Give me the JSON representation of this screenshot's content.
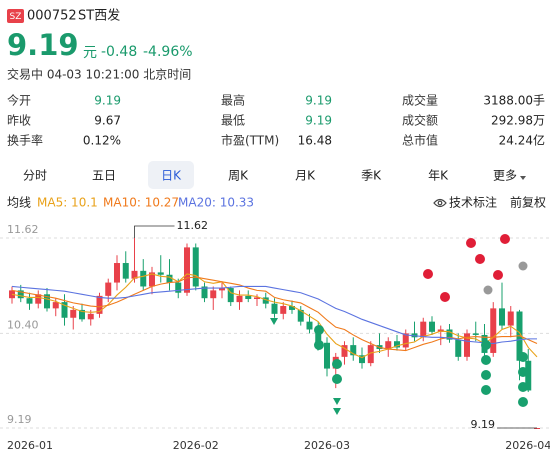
{
  "header": {
    "exchange": "SZ",
    "code": "000752",
    "name": "ST西发",
    "price": "9.19",
    "unit": "元",
    "change": "-0.48",
    "change_pct": "-4.96%",
    "status": "交易中 04-03 10:21:00 北京时间"
  },
  "stats": [
    [
      {
        "label": "今开",
        "value": "9.19",
        "color": "#1a9a6c"
      },
      {
        "label": "最高",
        "value": "9.19",
        "color": "#1a9a6c"
      },
      {
        "label": "成交量",
        "value": "3188.00手"
      }
    ],
    [
      {
        "label": "昨收",
        "value": "9.67"
      },
      {
        "label": "最低",
        "value": "9.19",
        "color": "#1a9a6c"
      },
      {
        "label": "成交额",
        "value": "292.98万"
      }
    ],
    [
      {
        "label": "换手率",
        "value": "0.12%"
      },
      {
        "label": "市盈(TTM)",
        "value": "16.48"
      },
      {
        "label": "总市值",
        "value": "24.24亿"
      }
    ]
  ],
  "tabs": [
    {
      "label": "分时",
      "active": false
    },
    {
      "label": "五日",
      "active": false
    },
    {
      "label": "日K",
      "active": true
    },
    {
      "label": "周K",
      "active": false
    },
    {
      "label": "月K",
      "active": false
    },
    {
      "label": "季K",
      "active": false
    },
    {
      "label": "年K",
      "active": false
    },
    {
      "label": "更多",
      "active": false
    }
  ],
  "indicator": {
    "label": "均线",
    "tools": [
      "技术标注",
      "前复权"
    ]
  },
  "chart_data": {
    "type": "candlestick",
    "up_color": "#e8414a",
    "down_color": "#18a06e",
    "categories": [
      "2026-01",
      null,
      null,
      null,
      null,
      null,
      null,
      null,
      null,
      null,
      null,
      null,
      null,
      null,
      null,
      null,
      null,
      null,
      null,
      null,
      null,
      "2026-02",
      null,
      null,
      null,
      null,
      null,
      null,
      null,
      null,
      null,
      null,
      null,
      null,
      null,
      null,
      "2026-03",
      null,
      null,
      null,
      null,
      null,
      null,
      null,
      null,
      null,
      null,
      null,
      null,
      null,
      null,
      null,
      null,
      null,
      null,
      null,
      null,
      null,
      null,
      "2026-04",
      null
    ],
    "open": [
      10.85,
      10.95,
      10.85,
      10.78,
      10.9,
      10.72,
      10.8,
      10.6,
      10.7,
      10.58,
      10.65,
      10.88,
      11.05,
      11.3,
      11.1,
      11.2,
      11.0,
      11.18,
      11.15,
      11.05,
      10.92,
      11.5,
      11.0,
      10.85,
      10.95,
      10.98,
      10.8,
      10.88,
      10.84,
      10.86,
      10.78,
      10.65,
      10.75,
      10.7,
      10.55,
      10.45,
      10.28,
      9.95,
      10.1,
      10.25,
      10.12,
      10.02,
      10.25,
      10.2,
      10.3,
      10.22,
      10.4,
      10.35,
      10.55,
      10.42,
      10.45,
      10.32,
      10.1,
      10.4,
      10.38,
      10.15,
      10.72,
      10.5,
      10.68,
      10.05,
      9.19
    ],
    "high": [
      11.0,
      11.02,
      10.92,
      10.95,
      10.98,
      10.85,
      10.9,
      10.75,
      10.78,
      10.7,
      10.92,
      11.1,
      11.4,
      11.45,
      11.62,
      11.35,
      11.25,
      11.4,
      11.35,
      11.1,
      11.55,
      11.55,
      11.05,
      11.0,
      11.05,
      11.0,
      10.95,
      10.95,
      10.9,
      10.92,
      10.85,
      10.8,
      10.82,
      10.75,
      10.65,
      10.55,
      10.35,
      10.15,
      10.3,
      10.35,
      10.22,
      10.3,
      10.4,
      10.35,
      10.38,
      10.45,
      10.55,
      10.6,
      10.62,
      10.5,
      10.52,
      10.4,
      10.45,
      10.55,
      10.52,
      10.8,
      11.05,
      10.75,
      10.7,
      10.2,
      9.19
    ],
    "low": [
      10.78,
      10.8,
      10.7,
      10.72,
      10.68,
      10.62,
      10.5,
      10.45,
      10.55,
      10.5,
      10.6,
      10.8,
      10.95,
      11.05,
      11.05,
      10.95,
      10.9,
      11.05,
      10.95,
      10.85,
      10.88,
      10.95,
      10.8,
      10.7,
      10.85,
      10.75,
      10.7,
      10.8,
      10.75,
      10.72,
      10.6,
      10.58,
      10.65,
      10.5,
      10.4,
      10.2,
      9.85,
      9.7,
      10.0,
      10.05,
      9.95,
      9.98,
      10.15,
      10.1,
      10.18,
      10.18,
      10.3,
      10.3,
      10.38,
      10.25,
      10.28,
      10.05,
      10.05,
      10.3,
      10.02,
      10.1,
      10.45,
      10.35,
      9.8,
      9.65,
      9.19
    ],
    "close": [
      10.95,
      10.85,
      10.78,
      10.9,
      10.72,
      10.8,
      10.6,
      10.7,
      10.58,
      10.65,
      10.88,
      11.05,
      11.3,
      11.1,
      11.2,
      11.0,
      11.18,
      11.15,
      11.05,
      10.92,
      11.5,
      11.0,
      10.85,
      10.95,
      10.98,
      10.8,
      10.88,
      10.84,
      10.86,
      10.78,
      10.65,
      10.75,
      10.7,
      10.55,
      10.45,
      10.28,
      9.95,
      10.1,
      10.25,
      10.12,
      10.02,
      10.25,
      10.2,
      10.3,
      10.22,
      10.4,
      10.35,
      10.55,
      10.42,
      10.45,
      10.32,
      10.1,
      10.4,
      10.38,
      10.15,
      10.72,
      10.5,
      10.68,
      10.05,
      9.67,
      9.19
    ],
    "ma": [
      {
        "label": "MA5: 10.1",
        "color": "#e9a21a",
        "values": [
          10.9,
          10.88,
          10.86,
          10.86,
          10.84,
          10.81,
          10.76,
          10.72,
          10.68,
          10.67,
          10.68,
          10.77,
          10.89,
          10.99,
          11.11,
          11.13,
          11.16,
          11.13,
          11.12,
          11.06,
          11.16,
          11.14,
          11.06,
          11.04,
          11.06,
          10.92,
          10.89,
          10.89,
          10.87,
          10.83,
          10.8,
          10.78,
          10.75,
          10.69,
          10.62,
          10.55,
          10.39,
          10.27,
          10.21,
          10.14,
          10.09,
          10.15,
          10.17,
          10.2,
          10.24,
          10.27,
          10.29,
          10.36,
          10.39,
          10.43,
          10.42,
          10.37,
          10.34,
          10.33,
          10.27,
          10.35,
          10.45,
          10.49,
          10.41,
          10.22,
          10.1
        ]
      },
      {
        "label": "MA10: 10.27",
        "color": "#f07a1c",
        "values": [
          10.95,
          10.93,
          10.91,
          10.89,
          10.87,
          10.85,
          10.82,
          10.79,
          10.77,
          10.75,
          10.74,
          10.76,
          10.8,
          10.85,
          10.9,
          10.95,
          11.0,
          11.03,
          11.05,
          11.06,
          11.11,
          11.12,
          11.1,
          11.08,
          11.06,
          11.04,
          11.02,
          10.98,
          10.95,
          10.94,
          10.86,
          10.83,
          10.81,
          10.79,
          10.73,
          10.67,
          10.57,
          10.48,
          10.45,
          10.38,
          10.32,
          10.27,
          10.22,
          10.2,
          10.19,
          10.18,
          10.22,
          10.26,
          10.29,
          10.33,
          10.35,
          10.33,
          10.35,
          10.36,
          10.35,
          10.35,
          10.36,
          10.36,
          10.37,
          10.32,
          10.27
        ]
      },
      {
        "label": "MA20: 10.33",
        "color": "#5b73e0",
        "values": [
          11.0,
          10.99,
          10.98,
          10.97,
          10.96,
          10.95,
          10.94,
          10.92,
          10.9,
          10.88,
          10.86,
          10.85,
          10.85,
          10.86,
          10.88,
          10.9,
          10.92,
          10.93,
          10.94,
          10.95,
          10.96,
          10.97,
          10.98,
          10.98,
          10.98,
          10.99,
          11.0,
          11.0,
          11.0,
          11.0,
          10.98,
          10.96,
          10.94,
          10.92,
          10.88,
          10.84,
          10.78,
          10.72,
          10.68,
          10.63,
          10.58,
          10.54,
          10.5,
          10.46,
          10.42,
          10.38,
          10.37,
          10.36,
          10.35,
          10.35,
          10.34,
          10.32,
          10.3,
          10.29,
          10.28,
          10.27,
          10.29,
          10.3,
          10.32,
          10.33,
          10.33
        ]
      }
    ],
    "ylim": [
      9.19,
      11.62
    ],
    "yticks": [
      11.62,
      {
        "value": 10.4,
        "label": "10.40"
      },
      9.19
    ],
    "grid": true,
    "high_label": {
      "value": 11.62,
      "label": "11.62"
    },
    "low_label": {
      "value": 9.19,
      "label": "9.19"
    }
  }
}
